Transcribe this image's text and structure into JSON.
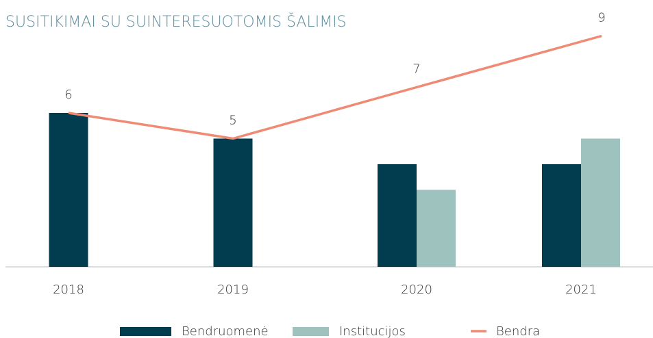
{
  "chart_data": {
    "type": "bar-line",
    "title": "SUSITIKIMAI SU SUINTERESUOTOMIS ŠALIMIS",
    "categories": [
      "2018",
      "2019",
      "2020",
      "2021"
    ],
    "series": [
      {
        "name": "Bendruomenė",
        "type": "bar",
        "color": "#023d4f",
        "values": [
          6,
          5,
          4,
          4
        ]
      },
      {
        "name": "Institucijos",
        "type": "bar",
        "color": "#9ec3bf",
        "values": [
          null,
          null,
          3,
          5
        ]
      },
      {
        "name": "Bendra",
        "type": "line",
        "color": "#ef8a74",
        "values": [
          6,
          5,
          7,
          9
        ]
      }
    ],
    "ylim": [
      0,
      10
    ],
    "legend": "bottom"
  }
}
